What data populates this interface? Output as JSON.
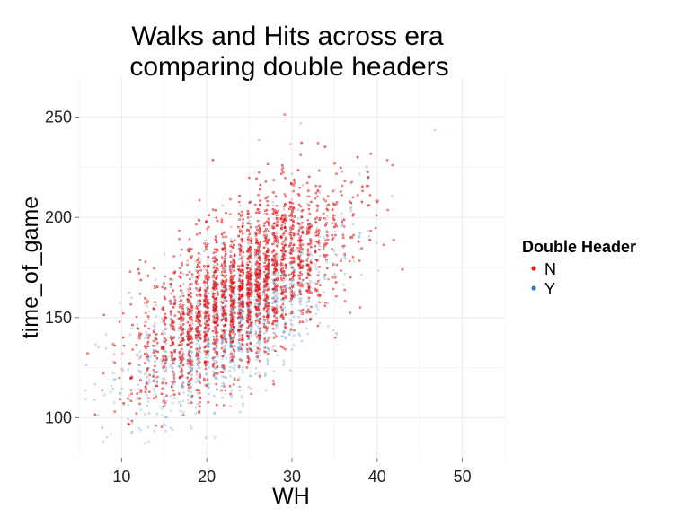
{
  "chart_data": {
    "type": "scatter",
    "title_lines": [
      "Walks and Hits across era",
      "comparing double headers"
    ],
    "xlabel": "WH",
    "ylabel": "time_of_game",
    "xlim": [
      5,
      55
    ],
    "ylim": [
      80,
      270
    ],
    "x_ticks": [
      10,
      20,
      30,
      40,
      50
    ],
    "y_ticks": [
      100,
      150,
      200,
      250
    ],
    "grid": true,
    "legend": {
      "title": "Double Header",
      "placement": "right",
      "entries": [
        {
          "label": "N",
          "color": "#e41a1c"
        },
        {
          "label": "Y",
          "color": "#377eb8"
        }
      ]
    },
    "series": [
      {
        "name": "N",
        "color": "#e41a1c",
        "opacity": 0.35,
        "distribution": {
          "x_mean": 24,
          "x_sd": 6.0,
          "y_intercept": 99,
          "y_slope": 2.75,
          "y_noise_sd": 19,
          "count": 7000
        }
      },
      {
        "name": "Y",
        "color": "#377eb8",
        "opacity": 0.35,
        "distribution": {
          "x_mean": 23,
          "x_sd": 6.0,
          "y_intercept": 90,
          "y_slope": 2.55,
          "y_noise_sd": 17,
          "count": 1600
        }
      }
    ]
  }
}
